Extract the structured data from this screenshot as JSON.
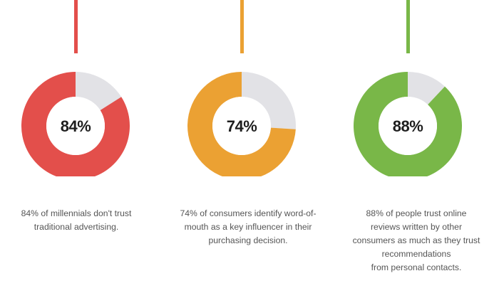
{
  "chart_data": [
    {
      "type": "pie",
      "variant": "donut",
      "value_percent": 84,
      "label": "84%",
      "caption": [
        "84% of millennials don't trust",
        "traditional advertising."
      ],
      "colors": {
        "fill": "#e34f4b",
        "remainder": "#e2e2e6"
      }
    },
    {
      "type": "pie",
      "variant": "donut",
      "value_percent": 74,
      "label": "74%",
      "caption": [
        "74% of consumers identify word-of-",
        "mouth as a key influencer in their",
        "purchasing decision."
      ],
      "colors": {
        "fill": "#eba133",
        "remainder": "#e2e2e6"
      }
    },
    {
      "type": "pie",
      "variant": "donut",
      "value_percent": 88,
      "label": "88%",
      "caption": [
        "88% of people trust online",
        "reviews written by other",
        "consumers as much as they trust",
        "recommendations",
        "from personal contacts."
      ],
      "colors": {
        "fill": "#79b748",
        "remainder": "#e2e2e6"
      }
    }
  ]
}
